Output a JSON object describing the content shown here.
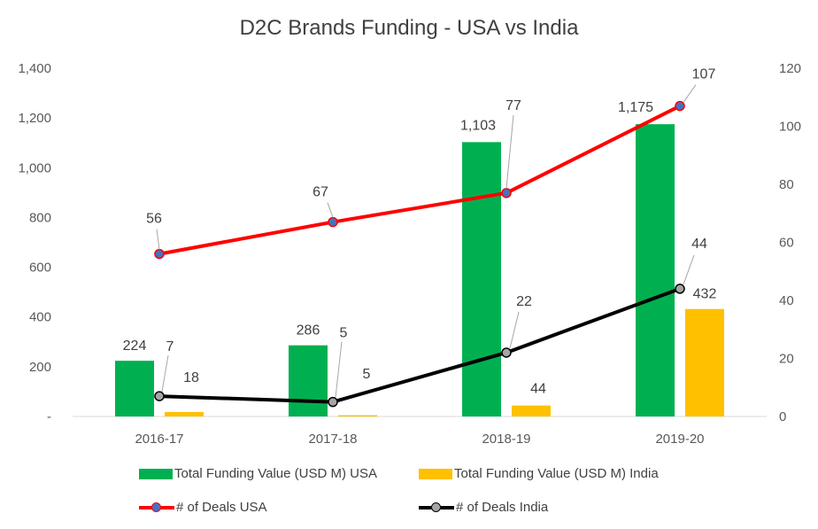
{
  "chart_data": {
    "type": "bar",
    "title": "D2C Brands Funding - USA vs India",
    "categories": [
      "2016-17",
      "2017-18",
      "2018-19",
      "2019-20"
    ],
    "left_axis": {
      "range": [
        0,
        1400
      ],
      "ticks": [
        "-",
        "200",
        "400",
        "600",
        "800",
        "1,000",
        "1,200",
        "1,400"
      ]
    },
    "right_axis": {
      "range": [
        0,
        120
      ],
      "ticks": [
        "0",
        "20",
        "40",
        "60",
        "80",
        "100",
        "120"
      ]
    },
    "grid": false,
    "legend_position": "bottom",
    "series": [
      {
        "name": "Total Funding Value (USD M) USA",
        "kind": "bar",
        "axis": "left",
        "color": "#00B050",
        "values": [
          224,
          286,
          1103,
          1175
        ],
        "labels": [
          "224",
          "286",
          "1,103",
          "1,175"
        ]
      },
      {
        "name": "Total Funding Value (USD M) India",
        "kind": "bar",
        "axis": "left",
        "color": "#FFC000",
        "values": [
          18,
          5,
          44,
          432
        ],
        "labels": [
          "18",
          "5",
          "44",
          "432"
        ]
      },
      {
        "name": "# of Deals USA",
        "kind": "line",
        "axis": "right",
        "color": "#FF0000",
        "marker": "#4472C4",
        "values": [
          56,
          67,
          77,
          107
        ],
        "labels": [
          "56",
          "67",
          "77",
          "107"
        ]
      },
      {
        "name": "# of Deals India",
        "kind": "line",
        "axis": "right",
        "color": "#000000",
        "marker": "#A5A5A5",
        "values": [
          7,
          5,
          22,
          44
        ],
        "labels": [
          "7",
          "5",
          "22",
          "44"
        ]
      }
    ]
  }
}
